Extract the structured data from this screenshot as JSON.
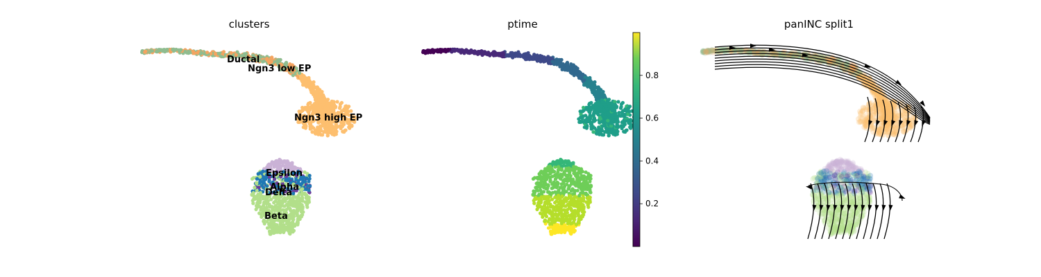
{
  "chart_data": [
    {
      "type": "scatter",
      "title": "clusters",
      "color_by": "categorical",
      "clusters": [
        {
          "name": "Ductal",
          "color": "#8fbc8f"
        },
        {
          "name": "Ngn3 low EP",
          "color": "#f4a460"
        },
        {
          "name": "Ngn3 high EP",
          "color": "#fdbf6f"
        },
        {
          "name": "Epsilon",
          "color": "#cab2d6"
        },
        {
          "name": "Alpha",
          "color": "#1f78b4"
        },
        {
          "name": "Delta",
          "color": "#6a3d9a"
        },
        {
          "name": "Beta",
          "color": "#b2df8a"
        }
      ],
      "axes": "off",
      "grid": false
    },
    {
      "type": "scatter",
      "title": "ptime",
      "color_by": "continuous",
      "colormap": "viridis",
      "colorbar": {
        "ticks": [
          "0.2",
          "0.4",
          "0.6",
          "0.8"
        ],
        "range": [
          0,
          1
        ]
      },
      "axes": "off",
      "grid": false
    },
    {
      "type": "scatter",
      "title": "panINC split1",
      "overlay": "streamlines",
      "axes": "off",
      "grid": false
    }
  ]
}
